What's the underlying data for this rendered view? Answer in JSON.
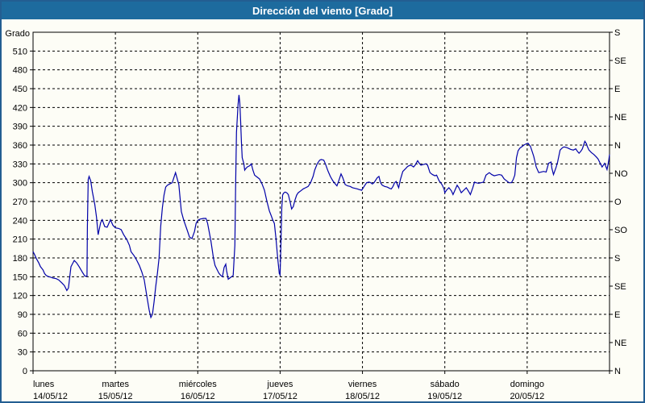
{
  "window": {
    "title": "Dirección del viento [Grado]"
  },
  "colors": {
    "titlebar_bg": "#1d6b9e",
    "titlebar_text": "#ffffff",
    "window_border": "#235e92",
    "window_bg": "#fdfdf6",
    "line": "#0000a8",
    "grid": "#000000",
    "text": "#000000"
  },
  "chart_data": {
    "type": "line",
    "title": "Dirección del viento [Grado]",
    "ylabel": "Grado",
    "xlabel": "",
    "ylim": [
      0,
      540
    ],
    "grid": true,
    "left_axis": {
      "label": "Grado",
      "tick_step": 30,
      "ticks": [
        0,
        30,
        60,
        90,
        120,
        150,
        180,
        210,
        240,
        270,
        300,
        330,
        360,
        390,
        420,
        450,
        480,
        510
      ]
    },
    "right_axis": {
      "ticks": [
        {
          "deg": 540,
          "label": "S"
        },
        {
          "deg": 495,
          "label": "SE"
        },
        {
          "deg": 450,
          "label": "E"
        },
        {
          "deg": 405,
          "label": "NE"
        },
        {
          "deg": 360,
          "label": "N"
        },
        {
          "deg": 315,
          "label": "NO"
        },
        {
          "deg": 270,
          "label": "O"
        },
        {
          "deg": 225,
          "label": "SO"
        },
        {
          "deg": 180,
          "label": "S"
        },
        {
          "deg": 135,
          "label": "SE"
        },
        {
          "deg": 90,
          "label": "E"
        },
        {
          "deg": 45,
          "label": "NE"
        },
        {
          "deg": 0,
          "label": "N"
        }
      ]
    },
    "x_axis": {
      "days": [
        {
          "name": "lunes",
          "date": "14/05/12"
        },
        {
          "name": "martes",
          "date": "15/05/12"
        },
        {
          "name": "miércoles",
          "date": "16/05/12"
        },
        {
          "name": "jueves",
          "date": "17/05/12"
        },
        {
          "name": "viernes",
          "date": "18/05/12"
        },
        {
          "name": "sábado",
          "date": "19/05/12"
        },
        {
          "name": "domingo",
          "date": "20/05/12"
        }
      ]
    },
    "series": [
      {
        "name": "Dirección del viento",
        "color": "#0000a8",
        "x_unit": "days_from_monday",
        "y_unit": "degrees",
        "points": [
          [
            0.0,
            190
          ],
          [
            0.02,
            185
          ],
          [
            0.04,
            179
          ],
          [
            0.07,
            172
          ],
          [
            0.09,
            166
          ],
          [
            0.12,
            161
          ],
          [
            0.14,
            155
          ],
          [
            0.16,
            152
          ],
          [
            0.19,
            150
          ],
          [
            0.22,
            149
          ],
          [
            0.24,
            148
          ],
          [
            0.28,
            147
          ],
          [
            0.31,
            145
          ],
          [
            0.35,
            140
          ],
          [
            0.38,
            136
          ],
          [
            0.41,
            128
          ],
          [
            0.43,
            132
          ],
          [
            0.46,
            166
          ],
          [
            0.5,
            176
          ],
          [
            0.53,
            172
          ],
          [
            0.56,
            166
          ],
          [
            0.6,
            157
          ],
          [
            0.63,
            151
          ],
          [
            0.655,
            151
          ],
          [
            0.66,
            230
          ],
          [
            0.67,
            305
          ],
          [
            0.68,
            310
          ],
          [
            0.7,
            303
          ],
          [
            0.72,
            286
          ],
          [
            0.75,
            265
          ],
          [
            0.77,
            245
          ],
          [
            0.79,
            217
          ],
          [
            0.82,
            236
          ],
          [
            0.84,
            241
          ],
          [
            0.87,
            230
          ],
          [
            0.9,
            229
          ],
          [
            0.94,
            241
          ],
          [
            0.97,
            232
          ],
          [
            1.0,
            228
          ],
          [
            1.04,
            227
          ],
          [
            1.07,
            225
          ],
          [
            1.1,
            217
          ],
          [
            1.14,
            209
          ],
          [
            1.17,
            200
          ],
          [
            1.19,
            190
          ],
          [
            1.23,
            183
          ],
          [
            1.26,
            176
          ],
          [
            1.29,
            168
          ],
          [
            1.32,
            158
          ],
          [
            1.35,
            145
          ],
          [
            1.38,
            120
          ],
          [
            1.41,
            97
          ],
          [
            1.43,
            85
          ],
          [
            1.45,
            90
          ],
          [
            1.47,
            110
          ],
          [
            1.49,
            135
          ],
          [
            1.51,
            155
          ],
          [
            1.53,
            180
          ],
          [
            1.55,
            230
          ],
          [
            1.57,
            260
          ],
          [
            1.59,
            280
          ],
          [
            1.61,
            293
          ],
          [
            1.63,
            296
          ],
          [
            1.66,
            298
          ],
          [
            1.69,
            300
          ],
          [
            1.73,
            316
          ],
          [
            1.77,
            297
          ],
          [
            1.8,
            254
          ],
          [
            1.83,
            240
          ],
          [
            1.87,
            225
          ],
          [
            1.9,
            213
          ],
          [
            1.93,
            211
          ],
          [
            1.96,
            222
          ],
          [
            1.98,
            235
          ],
          [
            2.0,
            240
          ],
          [
            2.03,
            242
          ],
          [
            2.07,
            243
          ],
          [
            2.1,
            243
          ],
          [
            2.12,
            235
          ],
          [
            2.16,
            207
          ],
          [
            2.19,
            180
          ],
          [
            2.21,
            168
          ],
          [
            2.24,
            160
          ],
          [
            2.26,
            155
          ],
          [
            2.28,
            152
          ],
          [
            2.3,
            150
          ],
          [
            2.32,
            165
          ],
          [
            2.34,
            170
          ],
          [
            2.35,
            160
          ],
          [
            2.37,
            146
          ],
          [
            2.39,
            148
          ],
          [
            2.41,
            150
          ],
          [
            2.43,
            152
          ],
          [
            2.45,
            200
          ],
          [
            2.46,
            300
          ],
          [
            2.47,
            380
          ],
          [
            2.49,
            425
          ],
          [
            2.5,
            440
          ],
          [
            2.51,
            428
          ],
          [
            2.52,
            400
          ],
          [
            2.53,
            366
          ],
          [
            2.54,
            340
          ],
          [
            2.56,
            330
          ],
          [
            2.57,
            320
          ],
          [
            2.58,
            322
          ],
          [
            2.6,
            325
          ],
          [
            2.63,
            327
          ],
          [
            2.65,
            330
          ],
          [
            2.67,
            320
          ],
          [
            2.69,
            312
          ],
          [
            2.71,
            310
          ],
          [
            2.73,
            308
          ],
          [
            2.75,
            306
          ],
          [
            2.78,
            298
          ],
          [
            2.81,
            288
          ],
          [
            2.84,
            270
          ],
          [
            2.87,
            255
          ],
          [
            2.89,
            248
          ],
          [
            2.91,
            241
          ],
          [
            2.93,
            235
          ],
          [
            2.95,
            211
          ],
          [
            2.97,
            180
          ],
          [
            2.99,
            155
          ],
          [
            3.0,
            153
          ],
          [
            3.01,
            200
          ],
          [
            3.02,
            260
          ],
          [
            3.03,
            280
          ],
          [
            3.04,
            283
          ],
          [
            3.06,
            285
          ],
          [
            3.08,
            284
          ],
          [
            3.1,
            281
          ],
          [
            3.12,
            270
          ],
          [
            3.14,
            258
          ],
          [
            3.16,
            262
          ],
          [
            3.18,
            272
          ],
          [
            3.2,
            280
          ],
          [
            3.22,
            284
          ],
          [
            3.25,
            287
          ],
          [
            3.28,
            290
          ],
          [
            3.31,
            292
          ],
          [
            3.34,
            294
          ],
          [
            3.37,
            300
          ],
          [
            3.4,
            310
          ],
          [
            3.42,
            320
          ],
          [
            3.45,
            330
          ],
          [
            3.48,
            336
          ],
          [
            3.5,
            337
          ],
          [
            3.53,
            336
          ],
          [
            3.55,
            330
          ],
          [
            3.58,
            319
          ],
          [
            3.61,
            310
          ],
          [
            3.64,
            303
          ],
          [
            3.67,
            298
          ],
          [
            3.69,
            295
          ],
          [
            3.71,
            302
          ],
          [
            3.74,
            314
          ],
          [
            3.76,
            308
          ],
          [
            3.79,
            297
          ],
          [
            3.82,
            295
          ],
          [
            3.85,
            294
          ],
          [
            3.88,
            292
          ],
          [
            3.91,
            291
          ],
          [
            3.94,
            290
          ],
          [
            3.96,
            289
          ],
          [
            3.99,
            288
          ],
          [
            4.02,
            294
          ],
          [
            4.05,
            300
          ],
          [
            4.08,
            301
          ],
          [
            4.1,
            300
          ],
          [
            4.12,
            298
          ],
          [
            4.14,
            300
          ],
          [
            4.16,
            304
          ],
          [
            4.18,
            308
          ],
          [
            4.2,
            310
          ],
          [
            4.22,
            300
          ],
          [
            4.24,
            296
          ],
          [
            4.27,
            294
          ],
          [
            4.3,
            293
          ],
          [
            4.33,
            291
          ],
          [
            4.35,
            290
          ],
          [
            4.37,
            294
          ],
          [
            4.39,
            300
          ],
          [
            4.41,
            302
          ],
          [
            4.43,
            295
          ],
          [
            4.44,
            292
          ],
          [
            4.46,
            305
          ],
          [
            4.49,
            318
          ],
          [
            4.52,
            322
          ],
          [
            4.55,
            326
          ],
          [
            4.58,
            328
          ],
          [
            4.6,
            327
          ],
          [
            4.62,
            325
          ],
          [
            4.64,
            328
          ],
          [
            4.66,
            333
          ],
          [
            4.67,
            335
          ],
          [
            4.69,
            331
          ],
          [
            4.71,
            328
          ],
          [
            4.74,
            329
          ],
          [
            4.77,
            330
          ],
          [
            4.79,
            328
          ],
          [
            4.82,
            316
          ],
          [
            4.85,
            313
          ],
          [
            4.88,
            311
          ],
          [
            4.9,
            312
          ],
          [
            4.93,
            303
          ],
          [
            4.95,
            300
          ],
          [
            4.97,
            296
          ],
          [
            4.99,
            290
          ],
          [
            5.0,
            284
          ],
          [
            5.02,
            288
          ],
          [
            5.05,
            292
          ],
          [
            5.08,
            287
          ],
          [
            5.1,
            281
          ],
          [
            5.13,
            290
          ],
          [
            5.15,
            296
          ],
          [
            5.17,
            292
          ],
          [
            5.2,
            284
          ],
          [
            5.23,
            288
          ],
          [
            5.26,
            292
          ],
          [
            5.29,
            286
          ],
          [
            5.31,
            281
          ],
          [
            5.34,
            292
          ],
          [
            5.36,
            301
          ],
          [
            5.38,
            300
          ],
          [
            5.41,
            299
          ],
          [
            5.44,
            300
          ],
          [
            5.47,
            301
          ],
          [
            5.5,
            312
          ],
          [
            5.54,
            316
          ],
          [
            5.57,
            313
          ],
          [
            5.6,
            311
          ],
          [
            5.63,
            312
          ],
          [
            5.66,
            313
          ],
          [
            5.69,
            312
          ],
          [
            5.72,
            306
          ],
          [
            5.75,
            303
          ],
          [
            5.78,
            300
          ],
          [
            5.81,
            300
          ],
          [
            5.83,
            305
          ],
          [
            5.85,
            312
          ],
          [
            5.87,
            340
          ],
          [
            5.89,
            351
          ],
          [
            5.91,
            355
          ],
          [
            5.94,
            358
          ],
          [
            5.96,
            360
          ],
          [
            5.99,
            362
          ],
          [
            6.01,
            363
          ],
          [
            6.04,
            358
          ],
          [
            6.06,
            350
          ],
          [
            6.08,
            342
          ],
          [
            6.11,
            325
          ],
          [
            6.14,
            316
          ],
          [
            6.17,
            317
          ],
          [
            6.2,
            318
          ],
          [
            6.23,
            317
          ],
          [
            6.26,
            331
          ],
          [
            6.29,
            333
          ],
          [
            6.3,
            323
          ],
          [
            6.32,
            313
          ],
          [
            6.35,
            324
          ],
          [
            6.37,
            333
          ],
          [
            6.4,
            352
          ],
          [
            6.43,
            356
          ],
          [
            6.45,
            357
          ],
          [
            6.48,
            356
          ],
          [
            6.5,
            355
          ],
          [
            6.53,
            353
          ],
          [
            6.56,
            352
          ],
          [
            6.59,
            354
          ],
          [
            6.61,
            350
          ],
          [
            6.63,
            347
          ],
          [
            6.65,
            350
          ],
          [
            6.67,
            354
          ],
          [
            6.7,
            366
          ],
          [
            6.72,
            362
          ],
          [
            6.73,
            358
          ],
          [
            6.75,
            352
          ],
          [
            6.78,
            348
          ],
          [
            6.81,
            345
          ],
          [
            6.84,
            341
          ],
          [
            6.86,
            338
          ],
          [
            6.89,
            330
          ],
          [
            6.91,
            325
          ],
          [
            6.94,
            331
          ],
          [
            6.97,
            321
          ],
          [
            6.99,
            335
          ],
          [
            7.0,
            345
          ]
        ]
      }
    ]
  }
}
